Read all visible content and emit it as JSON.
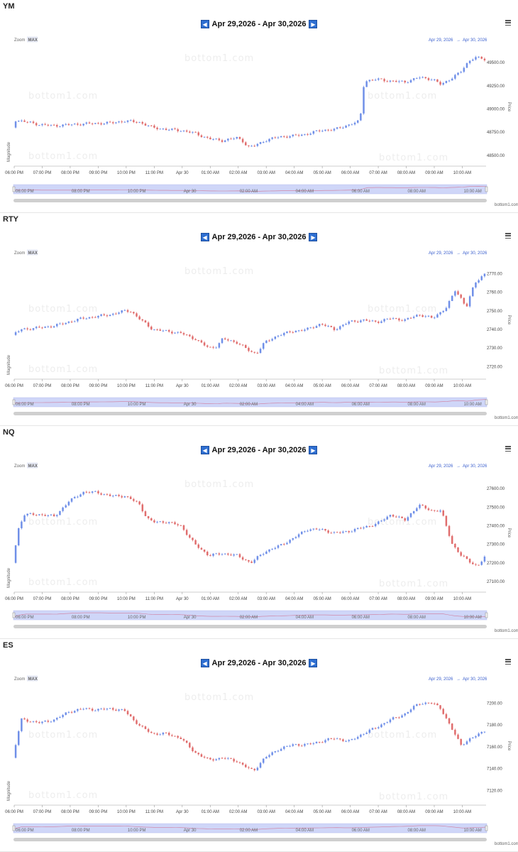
{
  "colors": {
    "up": "#6f8fe8",
    "down": "#e06d6d",
    "navigator_fill": "#cfd6f8",
    "accent": "#2f6fd1"
  },
  "common": {
    "zoom_label": "Zoom",
    "zoom_value": "MAX",
    "range_text": "Apr 29,2026 - Apr 30,2026",
    "range_from": "Apr 29, 2026",
    "range_arrow": "→",
    "range_to": "Apr 30, 2026",
    "y_axis_title": "Price",
    "y2_axis_title": "Magnitude",
    "credit": "bottom1.com",
    "watermark": "bottom1.com",
    "prev_icon": "triangle-left-icon",
    "next_icon": "triangle-right-icon",
    "menu_icon": "hamburger-menu-icon"
  },
  "chart_data": [
    {
      "symbol": "YM",
      "type": "candlestick",
      "x_ticks": [
        "06:00 PM",
        "07:00 PM",
        "08:00 PM",
        "09:00 PM",
        "10:00 PM",
        "11:00 PM",
        "Apr 30",
        "01:00 AM",
        "02:00 AM",
        "03:00 AM",
        "04:00 AM",
        "05:00 AM",
        "06:00 AM",
        "07:00 AM",
        "08:00 AM",
        "09:00 AM",
        "10:00 AM"
      ],
      "x_range": [
        0,
        16.85
      ],
      "y_ticks": [
        "48500.00",
        "48750.00",
        "49000.00",
        "49250.00",
        "49500.00"
      ],
      "y_tick_values": [
        48500,
        48750,
        49000,
        49250,
        49500
      ],
      "ylim": [
        48400,
        49600
      ],
      "anchors": [
        [
          0,
          48800
        ],
        [
          0.1,
          48880
        ],
        [
          0.5,
          48860
        ],
        [
          1,
          48830
        ],
        [
          1.5,
          48820
        ],
        [
          2,
          48830
        ],
        [
          2.5,
          48840
        ],
        [
          3,
          48845
        ],
        [
          3.5,
          48850
        ],
        [
          4,
          48870
        ],
        [
          4.5,
          48860
        ],
        [
          5,
          48800
        ],
        [
          5.5,
          48780
        ],
        [
          6,
          48770
        ],
        [
          6.5,
          48740
        ],
        [
          7,
          48680
        ],
        [
          7.5,
          48660
        ],
        [
          8,
          48690
        ],
        [
          8.2,
          48660
        ],
        [
          8.4,
          48590
        ],
        [
          8.6,
          48600
        ],
        [
          9,
          48660
        ],
        [
          9.5,
          48700
        ],
        [
          10,
          48710
        ],
        [
          10.5,
          48730
        ],
        [
          11,
          48770
        ],
        [
          11.5,
          48780
        ],
        [
          12,
          48830
        ],
        [
          12.4,
          48870
        ],
        [
          12.55,
          49300
        ],
        [
          13,
          49320
        ],
        [
          13.5,
          49300
        ],
        [
          14,
          49290
        ],
        [
          14.5,
          49340
        ],
        [
          15,
          49320
        ],
        [
          15.3,
          49260
        ],
        [
          15.5,
          49300
        ],
        [
          16,
          49400
        ],
        [
          16.3,
          49520
        ],
        [
          16.5,
          49560
        ],
        [
          16.85,
          49530
        ]
      ]
    },
    {
      "symbol": "RTY",
      "type": "candlestick",
      "x_ticks": [
        "06:00 PM",
        "07:00 PM",
        "08:00 PM",
        "09:00 PM",
        "10:00 PM",
        "11:00 PM",
        "Apr 30",
        "01:00 AM",
        "02:00 AM",
        "03:00 AM",
        "04:00 AM",
        "05:00 AM",
        "06:00 AM",
        "07:00 AM",
        "08:00 AM",
        "09:00 AM",
        "10:00 AM"
      ],
      "x_range": [
        0,
        16.85
      ],
      "y_ticks": [
        "2720.00",
        "2730.00",
        "2740.00",
        "2750.00",
        "2760.00",
        "2770.00"
      ],
      "y_tick_values": [
        2720,
        2730,
        2740,
        2750,
        2760,
        2770
      ],
      "ylim": [
        2714,
        2774
      ],
      "anchors": [
        [
          0,
          2737
        ],
        [
          0.3,
          2740
        ],
        [
          1,
          2741
        ],
        [
          1.5,
          2742
        ],
        [
          2,
          2744
        ],
        [
          2.5,
          2746
        ],
        [
          3,
          2747
        ],
        [
          3.5,
          2748
        ],
        [
          4,
          2750
        ],
        [
          4.2,
          2750
        ],
        [
          4.5,
          2746
        ],
        [
          5,
          2740
        ],
        [
          5.5,
          2739
        ],
        [
          6,
          2738
        ],
        [
          6.5,
          2735
        ],
        [
          7,
          2730
        ],
        [
          7.3,
          2731
        ],
        [
          7.5,
          2735
        ],
        [
          8,
          2733
        ],
        [
          8.5,
          2728
        ],
        [
          8.7,
          2727
        ],
        [
          9,
          2733
        ],
        [
          9.5,
          2737
        ],
        [
          10,
          2739
        ],
        [
          10.5,
          2740
        ],
        [
          11,
          2743
        ],
        [
          11.5,
          2740
        ],
        [
          12,
          2744
        ],
        [
          12.5,
          2745
        ],
        [
          13,
          2744
        ],
        [
          13.5,
          2746
        ],
        [
          14,
          2745
        ],
        [
          14.5,
          2748
        ],
        [
          15,
          2746
        ],
        [
          15.5,
          2752
        ],
        [
          15.8,
          2761
        ],
        [
          16,
          2757
        ],
        [
          16.2,
          2752
        ],
        [
          16.5,
          2765
        ],
        [
          16.85,
          2770
        ]
      ]
    },
    {
      "symbol": "NQ",
      "type": "candlestick",
      "x_ticks": [
        "06:00 PM",
        "07:00 PM",
        "08:00 PM",
        "09:00 PM",
        "10:00 PM",
        "11:00 PM",
        "Apr 30",
        "01:00 AM",
        "02:00 AM",
        "03:00 AM",
        "04:00 AM",
        "05:00 AM",
        "06:00 AM",
        "07:00 AM",
        "08:00 AM",
        "09:00 AM",
        "10:00 AM"
      ],
      "x_range": [
        0,
        16.85
      ],
      "y_ticks": [
        "27100.00",
        "27200.00",
        "27300.00",
        "27400.00",
        "27500.00",
        "27600.00"
      ],
      "y_tick_values": [
        27100,
        27200,
        27300,
        27400,
        27500,
        27600
      ],
      "ylim": [
        27050,
        27650
      ],
      "anchors": [
        [
          0,
          27200
        ],
        [
          0.2,
          27380
        ],
        [
          0.4,
          27460
        ],
        [
          1,
          27460
        ],
        [
          1.5,
          27450
        ],
        [
          2,
          27530
        ],
        [
          2.5,
          27580
        ],
        [
          3,
          27580
        ],
        [
          3.5,
          27560
        ],
        [
          4,
          27560
        ],
        [
          4.5,
          27520
        ],
        [
          4.8,
          27440
        ],
        [
          5,
          27420
        ],
        [
          5.5,
          27420
        ],
        [
          6,
          27400
        ],
        [
          6.5,
          27300
        ],
        [
          7,
          27240
        ],
        [
          7.5,
          27250
        ],
        [
          8,
          27240
        ],
        [
          8.5,
          27200
        ],
        [
          9,
          27260
        ],
        [
          9.5,
          27290
        ],
        [
          10,
          27330
        ],
        [
          10.5,
          27380
        ],
        [
          11,
          27380
        ],
        [
          11.5,
          27360
        ],
        [
          12,
          27370
        ],
        [
          12.5,
          27390
        ],
        [
          13,
          27410
        ],
        [
          13.5,
          27460
        ],
        [
          14,
          27430
        ],
        [
          14.5,
          27510
        ],
        [
          15,
          27480
        ],
        [
          15.3,
          27480
        ],
        [
          15.7,
          27300
        ],
        [
          16,
          27240
        ],
        [
          16.4,
          27200
        ],
        [
          16.6,
          27180
        ],
        [
          16.85,
          27230
        ]
      ]
    },
    {
      "symbol": "ES",
      "type": "candlestick",
      "x_ticks": [
        "06:00 PM",
        "07:00 PM",
        "08:00 PM",
        "09:00 PM",
        "10:00 PM",
        "11:00 PM",
        "Apr 30",
        "01:00 AM",
        "02:00 AM",
        "03:00 AM",
        "04:00 AM",
        "05:00 AM",
        "06:00 AM",
        "07:00 AM",
        "08:00 AM",
        "09:00 AM",
        "10:00 AM"
      ],
      "x_range": [
        0,
        16.85
      ],
      "y_ticks": [
        "7120.00",
        "7140.00",
        "7160.00",
        "7180.00",
        "7200.00"
      ],
      "y_tick_values": [
        7120,
        7140,
        7160,
        7180,
        7200
      ],
      "ylim": [
        7108,
        7210
      ],
      "anchors": [
        [
          0,
          7150
        ],
        [
          0.3,
          7185
        ],
        [
          1,
          7182
        ],
        [
          1.5,
          7185
        ],
        [
          2,
          7192
        ],
        [
          2.5,
          7195
        ],
        [
          3,
          7194
        ],
        [
          3.5,
          7195
        ],
        [
          4,
          7193
        ],
        [
          4.3,
          7185
        ],
        [
          4.6,
          7178
        ],
        [
          5,
          7172
        ],
        [
          5.5,
          7172
        ],
        [
          6,
          7168
        ],
        [
          6.5,
          7155
        ],
        [
          7,
          7148
        ],
        [
          7.5,
          7150
        ],
        [
          8,
          7147
        ],
        [
          8.3,
          7142
        ],
        [
          8.6,
          7138
        ],
        [
          9,
          7150
        ],
        [
          9.5,
          7158
        ],
        [
          10,
          7162
        ],
        [
          10.5,
          7162
        ],
        [
          11,
          7165
        ],
        [
          11.5,
          7168
        ],
        [
          12,
          7165
        ],
        [
          12.5,
          7172
        ],
        [
          13,
          7178
        ],
        [
          13.5,
          7185
        ],
        [
          14,
          7190
        ],
        [
          14.5,
          7200
        ],
        [
          15,
          7200
        ],
        [
          15.3,
          7195
        ],
        [
          15.6,
          7180
        ],
        [
          16,
          7162
        ],
        [
          16.4,
          7168
        ],
        [
          16.85,
          7175
        ]
      ]
    }
  ]
}
